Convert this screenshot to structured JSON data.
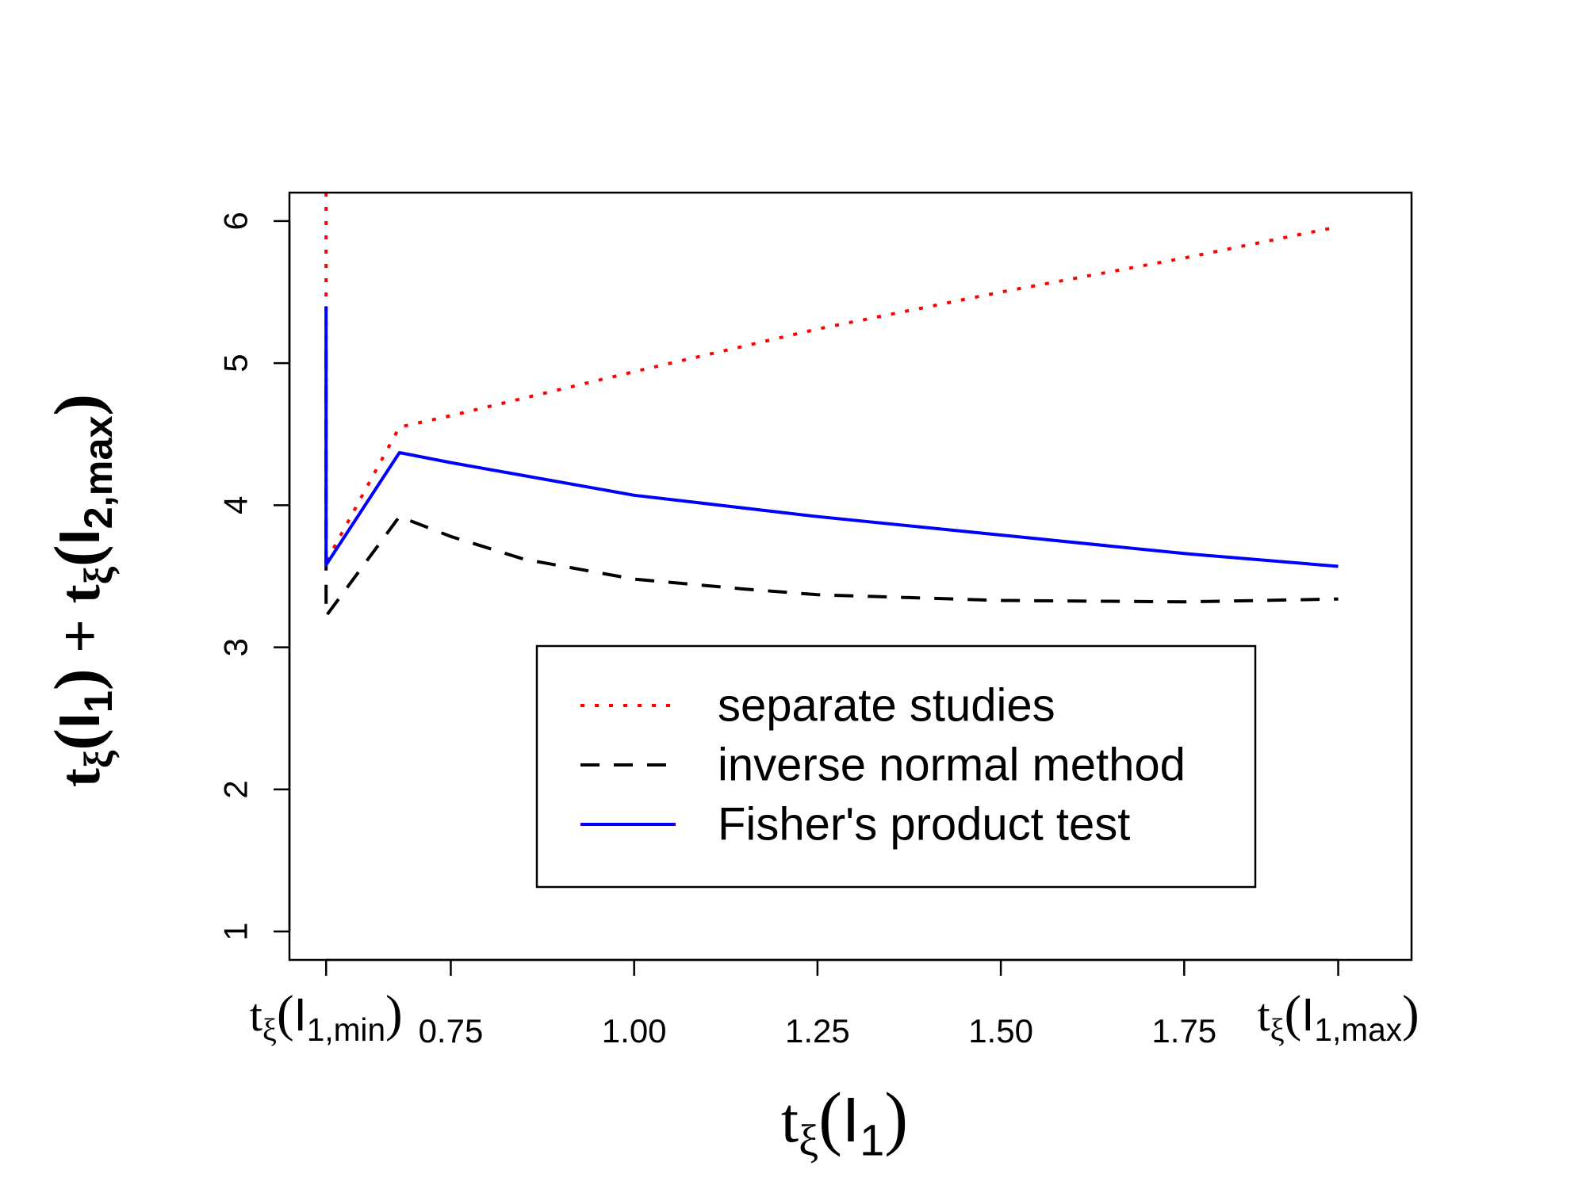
{
  "chart_data": {
    "type": "line",
    "title": "",
    "xlabel": {
      "base": "t",
      "sub": "ξ",
      "paren_open": "(",
      "var": "I",
      "var_sub": "1",
      "paren_close": ")"
    },
    "ylabel": {
      "term1": {
        "base": "t",
        "sub": "ξ",
        "paren_open": "(",
        "var": "I",
        "var_sub": "1",
        "paren_close": ")"
      },
      "plus": "+",
      "term2": {
        "base": "t",
        "sub": "ξ",
        "paren_open": "(",
        "var": "I",
        "var_sub": "2,max",
        "paren_close": ")"
      }
    },
    "xlim": [
      0.53,
      2.06
    ],
    "ylim": [
      0.8,
      6.2
    ],
    "x_ticks": [
      {
        "value": 0.58,
        "label": "",
        "special": {
          "base": "t",
          "sub": "ξ",
          "paren_open": "(",
          "var": "I",
          "var_sub": "1,min",
          "paren_close": ")"
        }
      },
      {
        "value": 0.75,
        "label": "0.75"
      },
      {
        "value": 1.0,
        "label": "1.00"
      },
      {
        "value": 1.25,
        "label": "1.25"
      },
      {
        "value": 1.5,
        "label": "1.50"
      },
      {
        "value": 1.75,
        "label": "1.75"
      },
      {
        "value": 1.96,
        "label": "",
        "special": {
          "base": "t",
          "sub": "ξ",
          "paren_open": "(",
          "var": "I",
          "var_sub": "1,max",
          "paren_close": ")"
        }
      }
    ],
    "y_ticks": [
      {
        "value": 1,
        "label": "1"
      },
      {
        "value": 2,
        "label": "2"
      },
      {
        "value": 3,
        "label": "3"
      },
      {
        "value": 4,
        "label": "4"
      },
      {
        "value": 5,
        "label": "5"
      },
      {
        "value": 6,
        "label": "6"
      }
    ],
    "legend": {
      "position": "bottom-center",
      "entries": [
        {
          "label": "separate studies",
          "color": "#ff0000",
          "style": "dotted"
        },
        {
          "label": "inverse normal method",
          "color": "#000000",
          "style": "dashed"
        },
        {
          "label": "Fisher's product test",
          "color": "#0000ff",
          "style": "solid"
        }
      ]
    },
    "series": [
      {
        "name": "separate studies",
        "color": "#ff0000",
        "style": "dotted",
        "points": [
          {
            "x": 0.58,
            "y": 6.2
          },
          {
            "x": 0.58,
            "y": 3.6
          },
          {
            "x": 0.68,
            "y": 4.55
          },
          {
            "x": 0.75,
            "y": 4.63
          },
          {
            "x": 1.0,
            "y": 4.94
          },
          {
            "x": 1.25,
            "y": 5.24
          },
          {
            "x": 1.5,
            "y": 5.5
          },
          {
            "x": 1.75,
            "y": 5.74
          },
          {
            "x": 1.96,
            "y": 5.96
          }
        ]
      },
      {
        "name": "inverse normal method",
        "color": "#000000",
        "style": "dashed",
        "points": [
          {
            "x": 0.58,
            "y": 5.08
          },
          {
            "x": 0.58,
            "y": 3.22
          },
          {
            "x": 0.68,
            "y": 3.92
          },
          {
            "x": 0.75,
            "y": 3.78
          },
          {
            "x": 0.85,
            "y": 3.62
          },
          {
            "x": 1.0,
            "y": 3.48
          },
          {
            "x": 1.15,
            "y": 3.41
          },
          {
            "x": 1.25,
            "y": 3.37
          },
          {
            "x": 1.5,
            "y": 3.33
          },
          {
            "x": 1.75,
            "y": 3.32
          },
          {
            "x": 1.96,
            "y": 3.34
          }
        ]
      },
      {
        "name": "Fisher's product test",
        "color": "#0000ff",
        "style": "solid",
        "points": [
          {
            "x": 0.58,
            "y": 5.4
          },
          {
            "x": 0.58,
            "y": 3.58
          },
          {
            "x": 0.68,
            "y": 4.37
          },
          {
            "x": 0.75,
            "y": 4.3
          },
          {
            "x": 1.0,
            "y": 4.07
          },
          {
            "x": 1.25,
            "y": 3.92
          },
          {
            "x": 1.5,
            "y": 3.79
          },
          {
            "x": 1.75,
            "y": 3.66
          },
          {
            "x": 1.96,
            "y": 3.57
          }
        ]
      }
    ]
  }
}
